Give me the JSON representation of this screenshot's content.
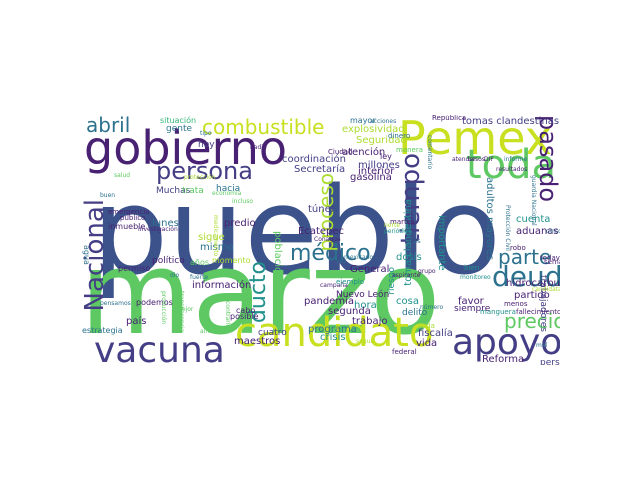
{
  "palette": {
    "dark_purple": "#482173",
    "navy": "#3b528b",
    "indigo": "#433e85",
    "blue": "#2c728e",
    "teal": "#21918c",
    "sea": "#28ae80",
    "green": "#5ec962",
    "lime": "#addc30",
    "yellow": "#c8e020",
    "light_teal": "#35b779"
  },
  "words": [
    {
      "text": "pueblo",
      "color": "#3b528b"
    },
    {
      "text": "marzo",
      "color": "#5ec962"
    },
    {
      "text": "gobierno",
      "color": "#482173"
    },
    {
      "text": "Pemex",
      "color": "#c8e020"
    },
    {
      "text": "candidato",
      "color": "#c8e020"
    },
    {
      "text": "vacuna",
      "color": "#433e85"
    },
    {
      "text": "apoyo",
      "color": "#433e85"
    },
    {
      "text": "toda",
      "color": "#5ec962"
    },
    {
      "text": "deuda",
      "color": "#2c728e"
    },
    {
      "text": "Nacional",
      "color": "#433e85"
    },
    {
      "text": "tiempo",
      "color": "#433e85"
    },
    {
      "text": "persona",
      "color": "#433e85"
    },
    {
      "text": "combustible",
      "color": "#c8e020"
    },
    {
      "text": "abril",
      "color": "#2c728e"
    },
    {
      "text": "médico",
      "color": "#2c728e"
    },
    {
      "text": "parte",
      "color": "#2c728e"
    },
    {
      "text": "precio",
      "color": "#5ec962"
    },
    {
      "text": "pasado",
      "color": "#482173"
    },
    {
      "text": "ducto",
      "color": "#21918c"
    },
    {
      "text": "proceso",
      "color": "#addc30"
    },
    {
      "text": "tomas clandestinas",
      "color": "#433e85"
    },
    {
      "text": "millones",
      "color": "#433e85"
    },
    {
      "text": "gasolina",
      "color": "#482173"
    },
    {
      "text": "coordinación",
      "color": "#433e85"
    },
    {
      "text": "Secretaría",
      "color": "#433e85"
    },
    {
      "text": "explosividad",
      "color": "#addc30"
    },
    {
      "text": "Seguridad",
      "color": "#addc30"
    },
    {
      "text": "atención",
      "color": "#482173"
    },
    {
      "text": "hidrocarburo",
      "color": "#482173"
    },
    {
      "text": "adultos mayores",
      "color": "#2c728e"
    },
    {
      "text": "toma clandestina",
      "color": "#21918c"
    },
    {
      "text": "información",
      "color": "#482173"
    },
    {
      "text": "Ecatepec",
      "color": "#482173"
    },
    {
      "text": "aduanas",
      "color": "#482173"
    },
    {
      "text": "lunes",
      "color": "#2c728e"
    },
    {
      "text": "predio",
      "color": "#482173"
    },
    {
      "text": "sigue",
      "color": "#addc30"
    },
    {
      "text": "mismo",
      "color": "#2c728e"
    },
    {
      "text": "país",
      "color": "#482173"
    },
    {
      "text": "dosis",
      "color": "#21918c"
    },
    {
      "text": "hora",
      "color": "#21918c"
    },
    {
      "text": "favor",
      "color": "#482173"
    },
    {
      "text": "trabajo",
      "color": "#482173"
    },
    {
      "text": "programa",
      "color": "#2c728e"
    },
    {
      "text": "pandemia",
      "color": "#482173"
    },
    {
      "text": "General",
      "color": "#482173"
    },
    {
      "text": "vida",
      "color": "#482173"
    },
    {
      "text": "fiscalía",
      "color": "#433e85"
    },
    {
      "text": "maestros",
      "color": "#482173"
    },
    {
      "text": "crisis",
      "color": "#21918c"
    },
    {
      "text": "Reforma",
      "color": "#482173"
    },
    {
      "text": "cosa",
      "color": "#21918c"
    },
    {
      "text": "partido",
      "color": "#482173"
    },
    {
      "text": "cuenta",
      "color": "#21918c"
    },
    {
      "text": "importante",
      "color": "#21918c"
    },
    {
      "text": "interior",
      "color": "#482173"
    },
    {
      "text": "ley",
      "color": "#482173"
    },
    {
      "text": "gente",
      "color": "#2c728e"
    },
    {
      "text": "hoy",
      "color": "#433e85"
    },
    {
      "text": "Muchas",
      "color": "#433e85"
    },
    {
      "text": "trata",
      "color": "#5ec962"
    },
    {
      "text": "hacia",
      "color": "#2c728e"
    },
    {
      "text": "situación",
      "color": "#35b779"
    },
    {
      "text": "mayor",
      "color": "#2c728e"
    },
    {
      "text": "túnel",
      "color": "#433e85"
    },
    {
      "text": "población",
      "color": "#5ec962"
    },
    {
      "text": "momento",
      "color": "#addc30"
    },
    {
      "text": "segunda",
      "color": "#482173"
    },
    {
      "text": "Nuevo León",
      "color": "#482173"
    },
    {
      "text": "político",
      "color": "#482173"
    },
    {
      "text": "riesgo",
      "color": "#21918c"
    },
    {
      "text": "siempre",
      "color": "#482173"
    },
    {
      "text": "delito",
      "color": "#2c728e"
    },
    {
      "text": "personal",
      "color": "#433e85"
    },
    {
      "text": "trabajadores",
      "color": "#433e85"
    },
    {
      "text": "semana",
      "color": "#482173"
    },
    {
      "text": "cuatro",
      "color": "#433e85"
    },
    {
      "text": "cabo",
      "color": "#482173"
    },
    {
      "text": "posible",
      "color": "#482173"
    },
    {
      "text": "podemos",
      "color": "#482173"
    },
    {
      "text": "estrategia",
      "color": "#2c728e"
    },
    {
      "text": "agua",
      "color": "#2c728e"
    },
    {
      "text": "inmueble",
      "color": "#482173"
    },
    {
      "text": "permiso",
      "color": "#482173"
    },
    {
      "text": "Conagua",
      "color": "#482173"
    },
    {
      "text": "martes",
      "color": "#482173"
    },
    {
      "text": "robo",
      "color": "#482173"
    },
    {
      "text": "todavía",
      "color": "#482173"
    },
    {
      "text": "acciones",
      "color": "#2c728e"
    },
    {
      "text": "República",
      "color": "#482173"
    },
    {
      "text": "Protección Civil",
      "color": "#2c728e"
    },
    {
      "text": "manguera",
      "color": "#21918c"
    },
    {
      "text": "menos",
      "color": "#482173"
    },
    {
      "text": "fallecimiento",
      "color": "#482173"
    },
    {
      "text": "bien",
      "color": "#21918c"
    },
    {
      "text": "federal",
      "color": "#482173"
    },
    {
      "text": "cada",
      "color": "#addc30"
    },
    {
      "text": "grupo",
      "color": "#482173"
    },
    {
      "text": "aspirante",
      "color": "#482173"
    },
    {
      "text": "periódico",
      "color": "#21918c"
    },
    {
      "text": "Ciudad",
      "color": "#482173"
    },
    {
      "text": "manera",
      "color": "#5ec962"
    },
    {
      "text": "dinero",
      "color": "#2c728e"
    },
    {
      "text": "nadie",
      "color": "#482173"
    },
    {
      "text": "emergencia",
      "color": "#482173"
    },
    {
      "text": "público",
      "color": "#482173"
    },
    {
      "text": "investigación",
      "color": "#482173"
    },
    {
      "text": "años",
      "color": "#5ec962"
    },
    {
      "text": "campaña",
      "color": "#482173"
    },
    {
      "text": "ejemplo",
      "color": "#21918c"
    },
    {
      "text": "seguir",
      "color": "#addc30"
    },
    {
      "text": "cinco",
      "color": "#2c728e"
    },
    {
      "text": "atender",
      "color": "#482173"
    },
    {
      "text": "casos",
      "color": "#482173"
    },
    {
      "text": "DIF",
      "color": "#482173"
    },
    {
      "text": "informe",
      "color": "#2c728e"
    },
    {
      "text": "resultados",
      "color": "#482173"
    },
    {
      "text": "salud",
      "color": "#5ec962"
    },
    {
      "text": "protección",
      "color": "#addc30"
    },
    {
      "text": "economía",
      "color": "#5ec962"
    },
    {
      "text": "incluso",
      "color": "#5ec962"
    },
    {
      "text": "monitoreo",
      "color": "#21918c"
    },
    {
      "text": "alrededor",
      "color": "#5ec962"
    },
    {
      "text": "fuerte",
      "color": "#2c728e"
    },
    {
      "text": "dio",
      "color": "#2c728e"
    },
    {
      "text": "pensamos",
      "color": "#2c728e"
    },
    {
      "text": "mal",
      "color": "#2c728e"
    },
    {
      "text": "norte",
      "color": "#addc30"
    },
    {
      "text": "mes",
      "color": "#2c728e"
    },
    {
      "text": "guardia Nacional",
      "color": "#2c728e"
    },
    {
      "text": "mexicano",
      "color": "#2c728e"
    },
    {
      "text": "vez",
      "color": "#2c728e"
    },
    {
      "text": "comentario",
      "color": "#2c728e"
    },
    {
      "text": "candidata",
      "color": "#addc30"
    },
    {
      "text": "transparencia",
      "color": "#5ec962"
    },
    {
      "text": "producción",
      "color": "#5ec962"
    },
    {
      "text": "mejor",
      "color": "#5ec962"
    },
    {
      "text": "tipo",
      "color": "#2c728e"
    },
    {
      "text": "buen",
      "color": "#2c728e"
    },
    {
      "text": "medicamento",
      "color": "#addc30"
    },
    {
      "text": "número",
      "color": "#2c728e"
    },
    {
      "text": "contrario",
      "color": "#5ec962"
    }
  ]
}
